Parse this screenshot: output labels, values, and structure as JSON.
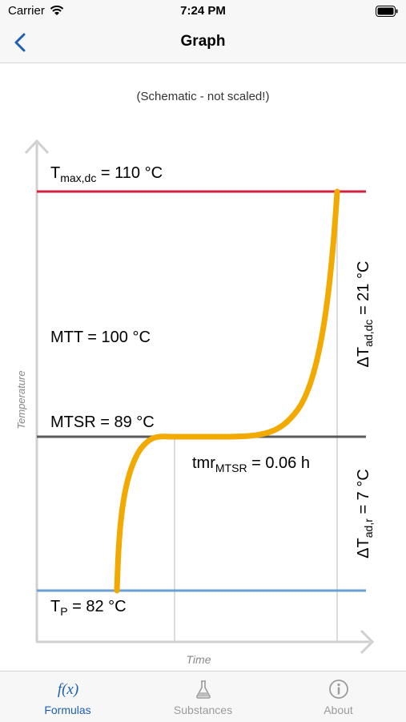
{
  "status_bar": {
    "carrier": "Carrier",
    "time": "7:24 PM"
  },
  "nav": {
    "title": "Graph",
    "back_icon": "chevron-left-icon"
  },
  "graph": {
    "caption": "(Schematic - not scaled!)",
    "y_axis_label": "Temperature",
    "x_axis_label": "Time",
    "tmax": {
      "prefix": "T",
      "sub": "max,dc",
      "suffix": " = 110 °C"
    },
    "mtt": "MTT = 100 °C",
    "mtsr": "MTSR = 89 °C",
    "tp": {
      "prefix": "T",
      "sub": "P",
      "suffix": " = 82 °C"
    },
    "tmr": {
      "prefix": "tmr",
      "sub": "MTSR",
      "suffix": " = 0.06 h"
    },
    "dt_dc": {
      "prefix": "ΔT",
      "sub": "ad,dc",
      "suffix": " = 21 °C"
    },
    "dt_r": {
      "prefix": "ΔT",
      "sub": "ad,r",
      "suffix": " = 7 °C"
    },
    "colors": {
      "tmax_line": "#d2213f",
      "mtsr_line": "#5a5a5a",
      "tp_line": "#6a9fd4",
      "curve": "#f2a900",
      "axis": "#d0d0d0"
    }
  },
  "tabs": [
    {
      "label": "Formulas",
      "icon": "function-icon",
      "active": true
    },
    {
      "label": "Substances",
      "icon": "flask-icon",
      "active": false
    },
    {
      "label": "About",
      "icon": "info-icon",
      "active": false
    }
  ]
}
